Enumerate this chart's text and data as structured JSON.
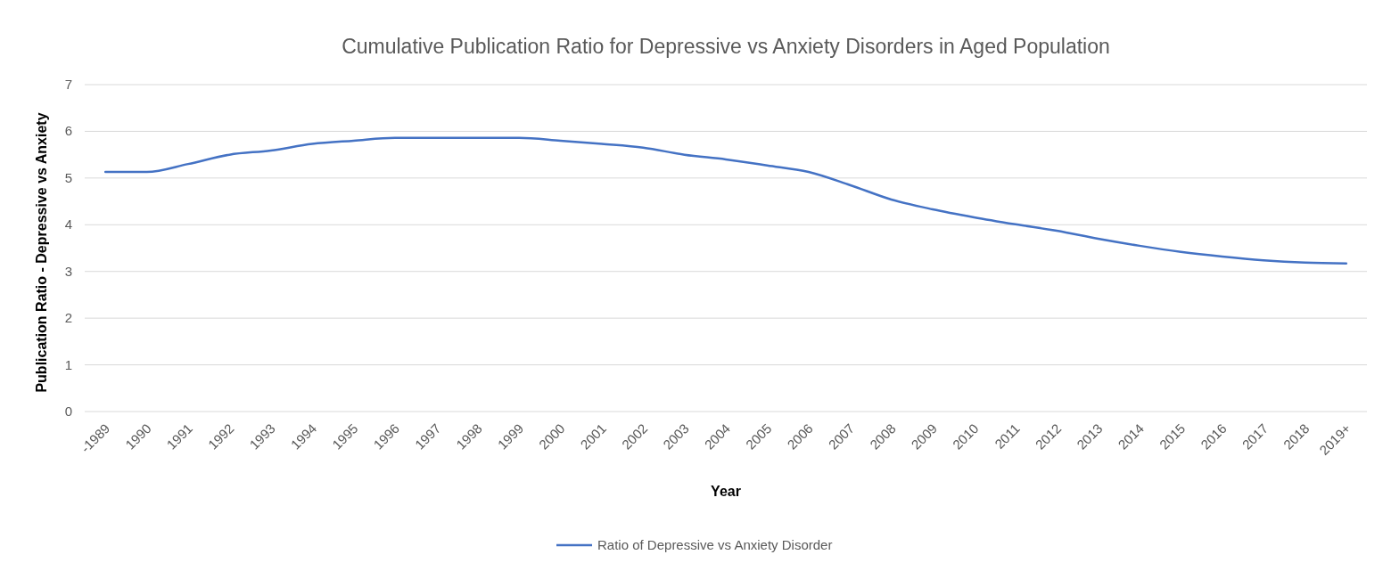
{
  "chart_data": {
    "type": "line",
    "title": "Cumulative Publication Ratio for Depressive vs Anxiety Disorders in Aged Population",
    "xlabel": "Year",
    "ylabel": "Publication Ratio - Depressive vs Anxiety",
    "categories": [
      "-1989",
      "1990",
      "1991",
      "1992",
      "1993",
      "1994",
      "1995",
      "1996",
      "1997",
      "1998",
      "1999",
      "2000",
      "2001",
      "2002",
      "2003",
      "2004",
      "2005",
      "2006",
      "2007",
      "2008",
      "2009",
      "2010",
      "2011",
      "2012",
      "2013",
      "2014",
      "2015",
      "2016",
      "2017",
      "2018",
      "2019+"
    ],
    "series": [
      {
        "name": "Ratio of Depressive vs Anxiety Disorder",
        "color": "#4472c4",
        "values": [
          5.13,
          5.13,
          5.3,
          5.5,
          5.59,
          5.73,
          5.8,
          5.86,
          5.86,
          5.86,
          5.86,
          5.8,
          5.73,
          5.65,
          5.5,
          5.4,
          5.27,
          5.13,
          4.85,
          4.54,
          4.33,
          4.16,
          4.01,
          3.87,
          3.7,
          3.55,
          3.42,
          3.32,
          3.24,
          3.19,
          3.17
        ]
      }
    ],
    "ylim": [
      0,
      7
    ],
    "yticks": [
      0,
      1,
      2,
      3,
      4,
      5,
      6,
      7
    ],
    "grid": "y",
    "legend": "bottom",
    "marker": "none",
    "line_style": "solid"
  }
}
